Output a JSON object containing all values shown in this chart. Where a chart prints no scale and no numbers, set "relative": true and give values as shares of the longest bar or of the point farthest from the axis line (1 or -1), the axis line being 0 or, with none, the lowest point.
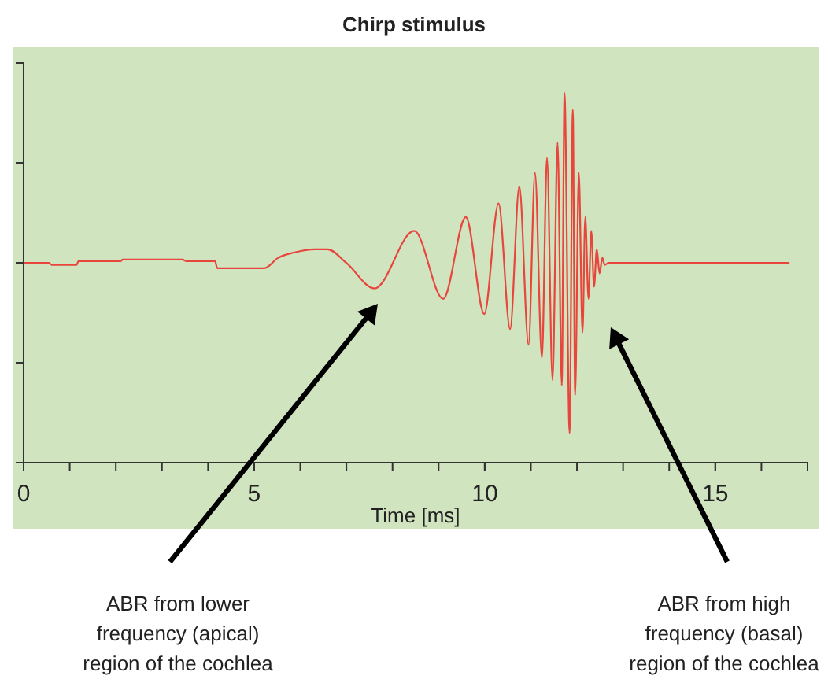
{
  "chart_data": {
    "type": "line",
    "title": "Chirp stimulus",
    "xlabel": "Time [ms]",
    "relative": true,
    "x": [
      0,
      0.55,
      0.61,
      1.15,
      1.19,
      2.1,
      2.15,
      3.45,
      3.52,
      4.15,
      4.2,
      5.22,
      5.52,
      5.86,
      6.31,
      6.59,
      7.0,
      7.61,
      8.47,
      9.1,
      9.59,
      9.99,
      10.3,
      10.55,
      10.75,
      10.95,
      11.09,
      11.24,
      11.35,
      11.47,
      11.58,
      11.67,
      11.73,
      11.84,
      11.91,
      11.96,
      12.04,
      12.12,
      12.18,
      12.25,
      12.31,
      12.37,
      12.43,
      12.49,
      12.55,
      12.6,
      12.69,
      16.61
    ],
    "series": [
      {
        "color": "#e8453c",
        "values": [
          0.54,
          0.54,
          0.535,
          0.535,
          0.545,
          0.545,
          0.549,
          0.549,
          0.545,
          0.545,
          0.526,
          0.526,
          0.554,
          0.568,
          0.577,
          0.577,
          0.54,
          0.471,
          0.627,
          0.443,
          0.664,
          0.402,
          0.701,
          0.361,
          0.747,
          0.319,
          0.784,
          0.283,
          0.825,
          0.223,
          0.866,
          0.209,
          1,
          0.08,
          0.954,
          0.182,
          0.784,
          0.352,
          0.664,
          0.443,
          0.627,
          0.476,
          0.577,
          0.512,
          0.554,
          0.535,
          0.54,
          0.54
        ]
      }
    ],
    "xlim": [
      0,
      17
    ],
    "xticks": [
      0,
      5,
      10,
      15
    ],
    "annotations": [
      "ABR from lower\nfrequency (apical)\nregion of the cochlea",
      "ABR from high\nfrequency (basal)\nregion of the cochlea"
    ]
  }
}
